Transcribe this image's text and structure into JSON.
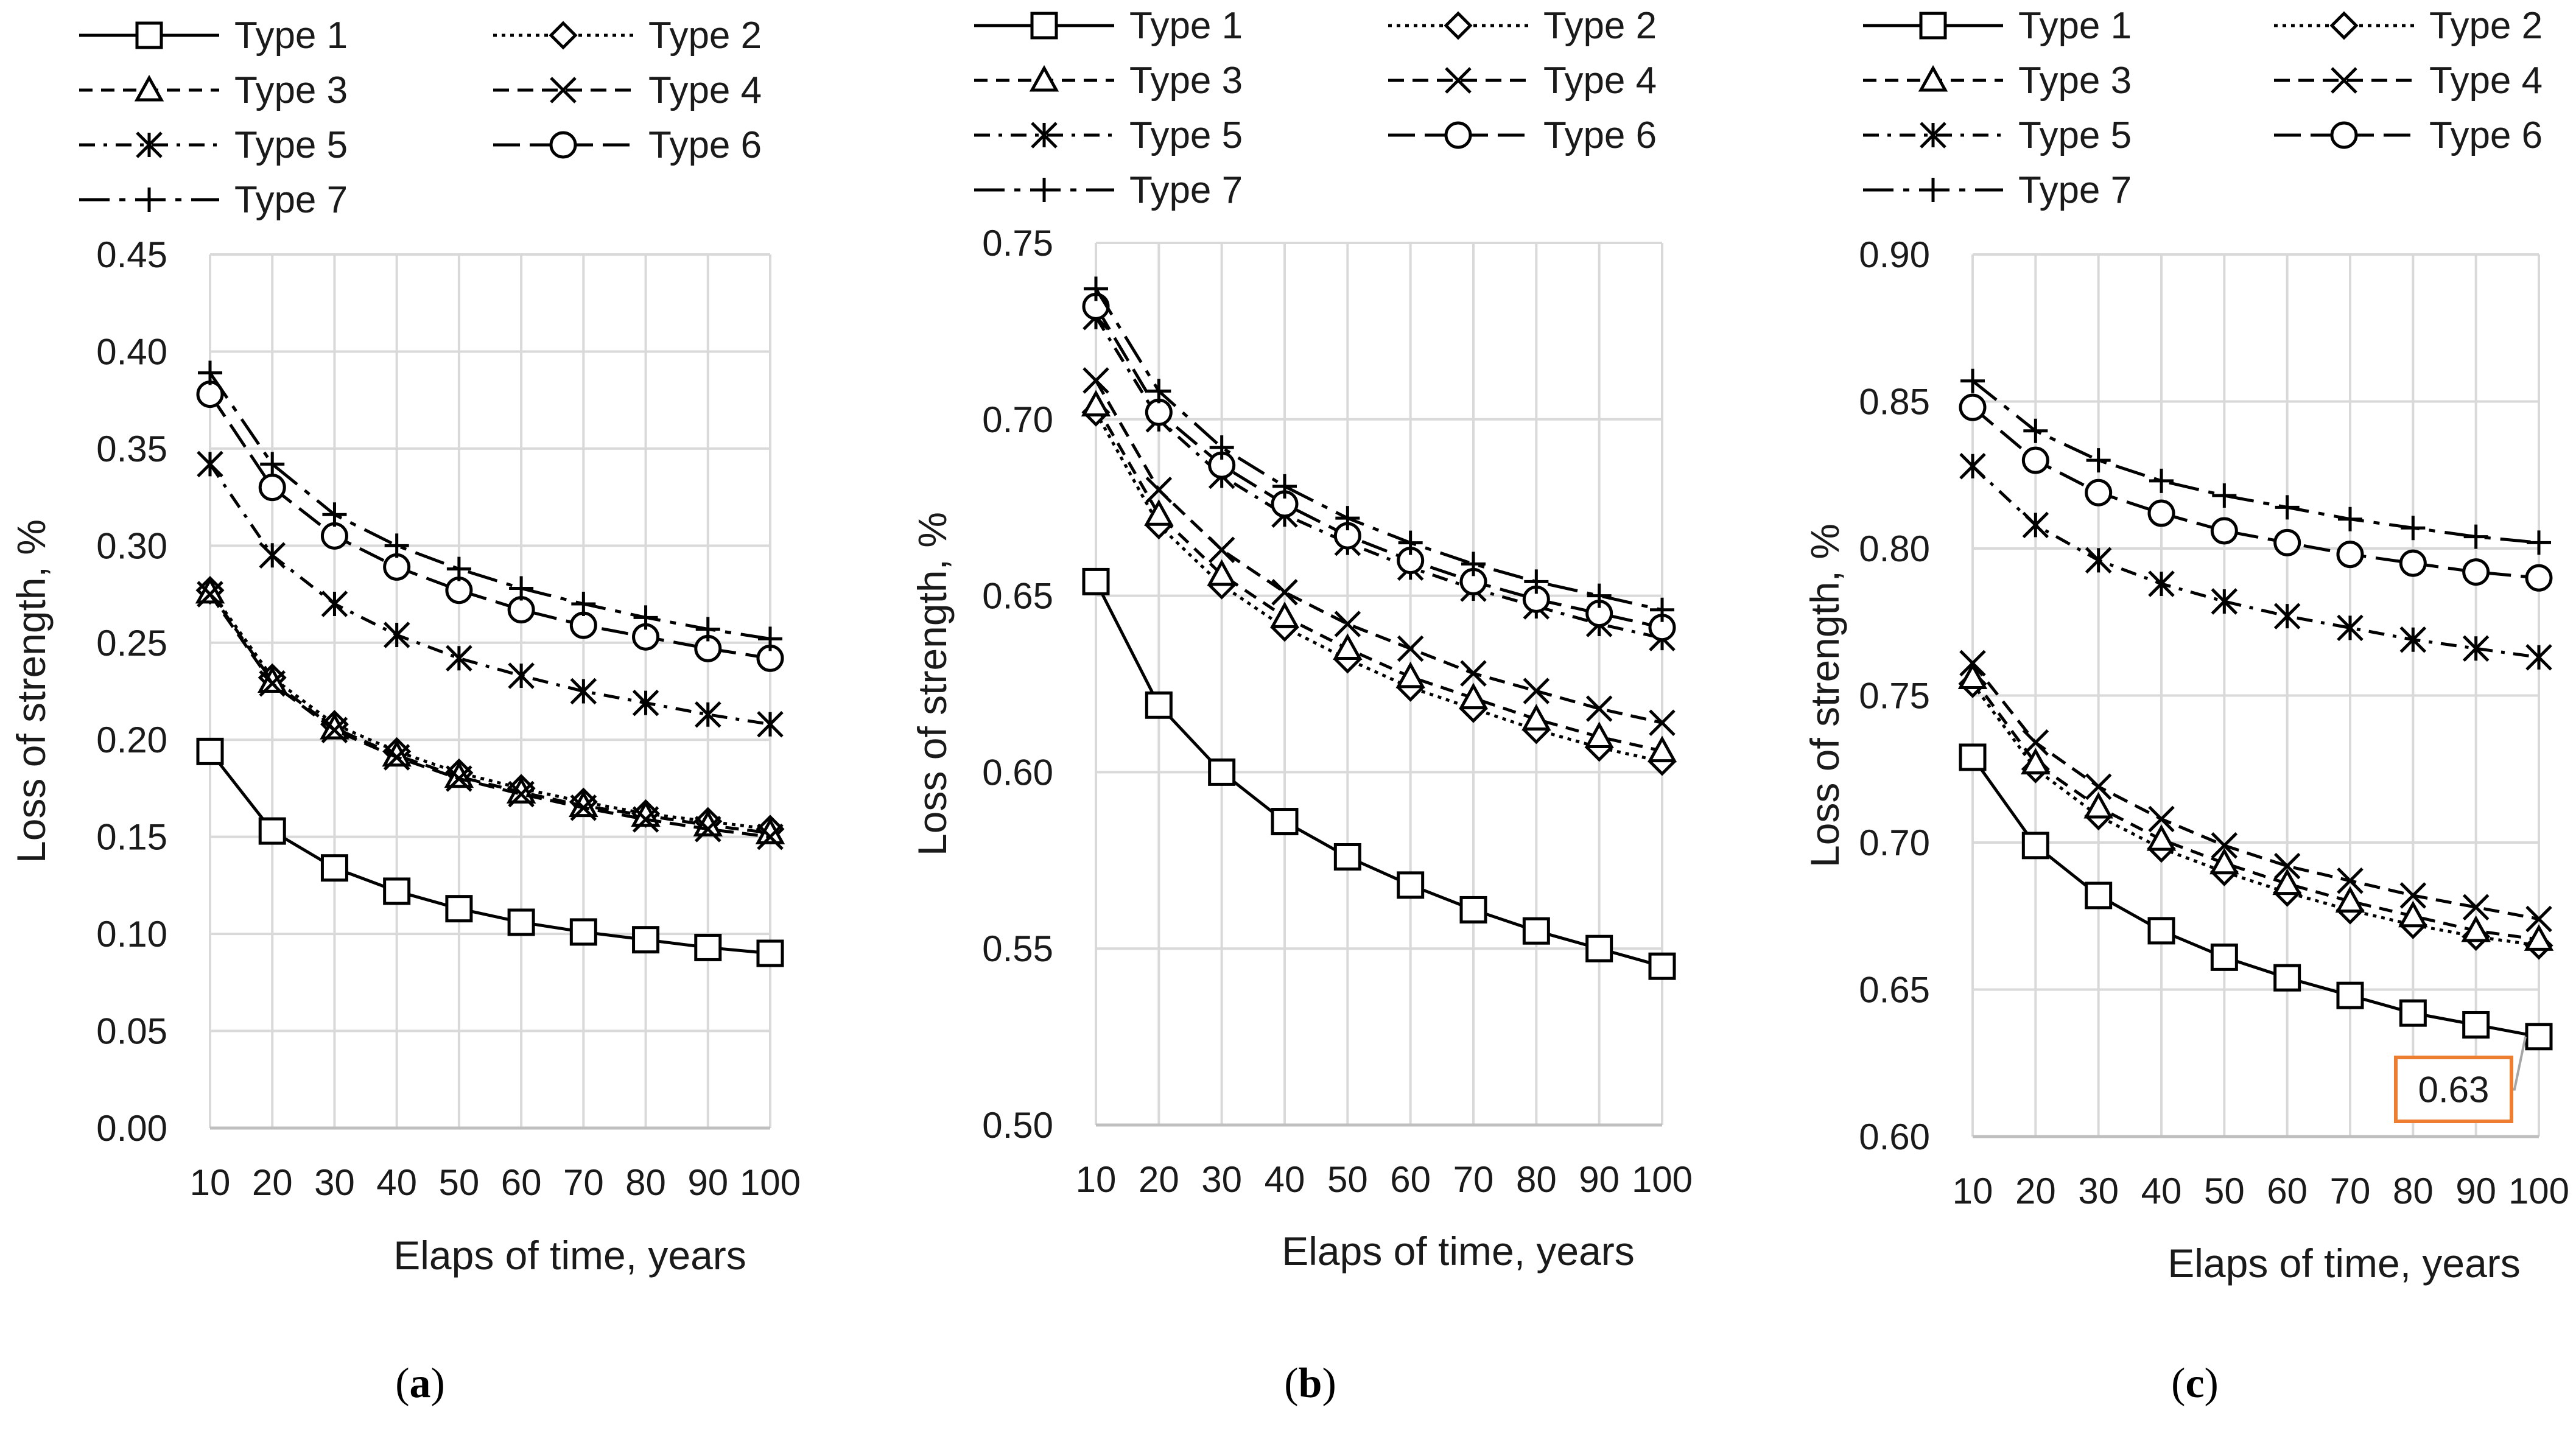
{
  "chart_data": [
    {
      "panel": "a",
      "type": "line",
      "title": "",
      "xlabel": "Elaps of time, years",
      "ylabel": "Loss of strength, %",
      "ylim": [
        0,
        0.45
      ],
      "yticks": [
        "0.00",
        "0.05",
        "0.10",
        "0.15",
        "0.20",
        "0.25",
        "0.30",
        "0.35",
        "0.40",
        "0.45"
      ],
      "x": [
        10,
        20,
        30,
        40,
        50,
        60,
        70,
        80,
        90,
        100
      ],
      "series": [
        {
          "name": "Type 1",
          "values": [
            0.194,
            0.153,
            0.134,
            0.122,
            0.113,
            0.106,
            0.101,
            0.097,
            0.093,
            0.09
          ]
        },
        {
          "name": "Type 2",
          "values": [
            0.277,
            0.232,
            0.208,
            0.194,
            0.183,
            0.175,
            0.168,
            0.162,
            0.158,
            0.154
          ]
        },
        {
          "name": "Type 3",
          "values": [
            0.276,
            0.23,
            0.206,
            0.192,
            0.181,
            0.173,
            0.166,
            0.161,
            0.156,
            0.152
          ]
        },
        {
          "name": "Type 4",
          "values": [
            0.275,
            0.229,
            0.205,
            0.191,
            0.18,
            0.172,
            0.165,
            0.159,
            0.154,
            0.15
          ]
        },
        {
          "name": "Type 5",
          "values": [
            0.342,
            0.295,
            0.27,
            0.254,
            0.242,
            0.233,
            0.225,
            0.219,
            0.213,
            0.208
          ]
        },
        {
          "name": "Type 6",
          "values": [
            0.378,
            0.33,
            0.305,
            0.289,
            0.277,
            0.267,
            0.259,
            0.253,
            0.247,
            0.242
          ]
        },
        {
          "name": "Type 7",
          "values": [
            0.389,
            0.342,
            0.316,
            0.3,
            0.288,
            0.278,
            0.27,
            0.263,
            0.257,
            0.252
          ]
        }
      ]
    },
    {
      "panel": "b",
      "type": "line",
      "title": "",
      "xlabel": "Elaps of time, years",
      "ylabel": "Loss of strength, %",
      "ylim": [
        0.5,
        0.75
      ],
      "yticks": [
        "0.50",
        "0.55",
        "0.60",
        "0.65",
        "0.70",
        "0.75"
      ],
      "x": [
        10,
        20,
        30,
        40,
        50,
        60,
        70,
        80,
        90,
        100
      ],
      "series": [
        {
          "name": "Type 1",
          "values": [
            0.654,
            0.619,
            0.6,
            0.586,
            0.576,
            0.568,
            0.561,
            0.555,
            0.55,
            0.545
          ]
        },
        {
          "name": "Type 2",
          "values": [
            0.702,
            0.67,
            0.653,
            0.641,
            0.632,
            0.624,
            0.618,
            0.612,
            0.607,
            0.603
          ]
        },
        {
          "name": "Type 3",
          "values": [
            0.704,
            0.673,
            0.656,
            0.644,
            0.635,
            0.627,
            0.621,
            0.615,
            0.61,
            0.606
          ]
        },
        {
          "name": "Type 4",
          "values": [
            0.711,
            0.68,
            0.663,
            0.651,
            0.642,
            0.635,
            0.628,
            0.623,
            0.618,
            0.614
          ]
        },
        {
          "name": "Type 5",
          "values": [
            0.729,
            0.7,
            0.684,
            0.673,
            0.665,
            0.658,
            0.652,
            0.647,
            0.642,
            0.638
          ]
        },
        {
          "name": "Type 6",
          "values": [
            0.732,
            0.702,
            0.687,
            0.676,
            0.667,
            0.66,
            0.654,
            0.649,
            0.645,
            0.641
          ]
        },
        {
          "name": "Type 7",
          "values": [
            0.737,
            0.708,
            0.692,
            0.681,
            0.672,
            0.665,
            0.659,
            0.654,
            0.65,
            0.646
          ]
        }
      ]
    },
    {
      "panel": "c",
      "type": "line",
      "title": "",
      "xlabel": "Elaps of time, years",
      "ylabel": "Loss of strength, %",
      "ylim": [
        0.6,
        0.9
      ],
      "yticks": [
        "0.60",
        "0.65",
        "0.70",
        "0.75",
        "0.80",
        "0.85",
        "0.90"
      ],
      "x": [
        10,
        20,
        30,
        40,
        50,
        60,
        70,
        80,
        90,
        100
      ],
      "annotation": "0.63",
      "series": [
        {
          "name": "Type 1",
          "values": [
            0.729,
            0.699,
            0.682,
            0.67,
            0.661,
            0.654,
            0.648,
            0.642,
            0.638,
            0.634
          ]
        },
        {
          "name": "Type 2",
          "values": [
            0.754,
            0.725,
            0.709,
            0.698,
            0.69,
            0.683,
            0.677,
            0.672,
            0.668,
            0.665
          ]
        },
        {
          "name": "Type 3",
          "values": [
            0.756,
            0.727,
            0.712,
            0.701,
            0.693,
            0.686,
            0.68,
            0.675,
            0.67,
            0.667
          ]
        },
        {
          "name": "Type 4",
          "values": [
            0.761,
            0.734,
            0.719,
            0.708,
            0.699,
            0.692,
            0.687,
            0.682,
            0.678,
            0.674
          ]
        },
        {
          "name": "Type 5",
          "values": [
            0.828,
            0.808,
            0.796,
            0.788,
            0.782,
            0.777,
            0.773,
            0.769,
            0.766,
            0.763
          ]
        },
        {
          "name": "Type 6",
          "values": [
            0.848,
            0.83,
            0.819,
            0.812,
            0.806,
            0.802,
            0.798,
            0.795,
            0.792,
            0.79
          ]
        },
        {
          "name": "Type 7",
          "values": [
            0.857,
            0.84,
            0.83,
            0.823,
            0.818,
            0.814,
            0.81,
            0.807,
            0.804,
            0.802
          ]
        }
      ]
    }
  ],
  "panel_labels": [
    "(a)",
    "(b)",
    "(c)"
  ],
  "legend": [
    "Type 1",
    "Type 2",
    "Type 3",
    "Type 4",
    "Type 5",
    "Type 6",
    "Type 7"
  ],
  "line_color": "#000000",
  "grid_color": "#d9d9d9",
  "callout_color": "#ed7d31"
}
